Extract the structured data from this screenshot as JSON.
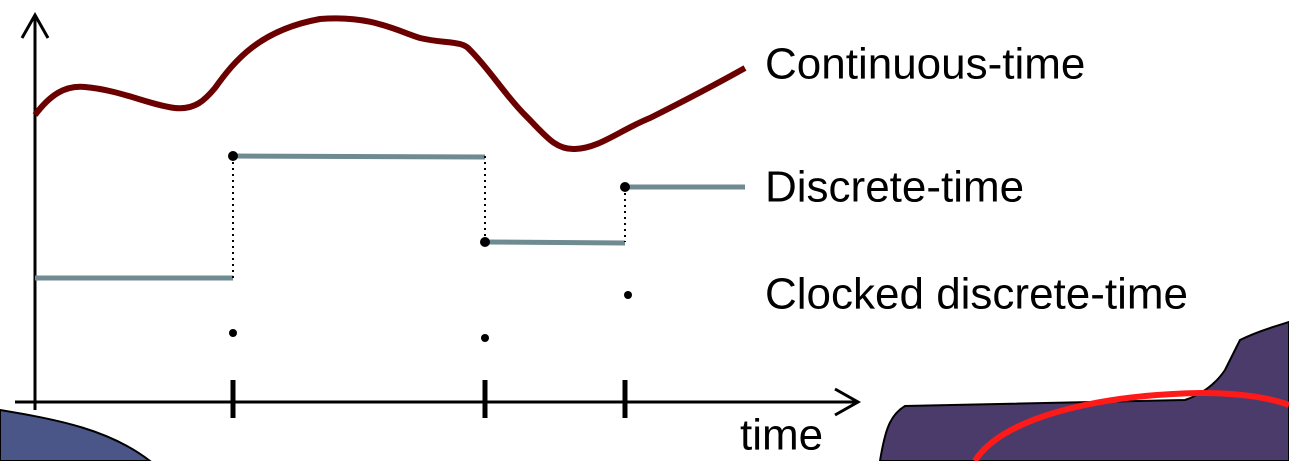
{
  "labels": {
    "continuous": "Continuous-time",
    "discrete": "Discrete-time",
    "clocked": "Clocked discrete-time"
  },
  "axis": {
    "x_label": "time"
  }
}
